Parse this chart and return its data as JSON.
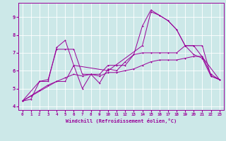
{
  "xlabel": "Windchill (Refroidissement éolien,°C)",
  "bg_color": "#cce8e8",
  "line_color": "#990099",
  "grid_color": "#ffffff",
  "xlim": [
    -0.5,
    23.5
  ],
  "ylim": [
    3.8,
    9.8
  ],
  "xticks": [
    0,
    1,
    2,
    3,
    4,
    5,
    6,
    7,
    8,
    9,
    10,
    11,
    12,
    13,
    14,
    15,
    16,
    17,
    18,
    19,
    20,
    21,
    22,
    23
  ],
  "yticks": [
    4,
    5,
    6,
    7,
    8,
    9
  ],
  "series1_x": [
    0,
    1,
    2,
    3,
    4,
    5,
    6,
    7,
    8,
    9,
    10,
    11,
    12,
    13,
    14,
    15,
    16,
    17,
    18,
    19,
    20,
    21,
    22,
    23
  ],
  "series1_y": [
    4.3,
    4.4,
    5.4,
    5.4,
    7.3,
    7.7,
    6.3,
    5.0,
    5.8,
    5.3,
    6.1,
    6.0,
    6.5,
    6.9,
    8.5,
    9.4,
    9.1,
    8.8,
    8.3,
    7.4,
    6.9,
    6.7,
    5.7,
    5.5
  ],
  "series2_x": [
    0,
    2,
    3,
    4,
    5,
    6,
    7,
    8,
    9,
    10,
    11,
    12,
    13,
    14,
    15,
    16,
    17,
    18,
    19,
    20,
    21,
    22,
    23
  ],
  "series2_y": [
    4.3,
    5.4,
    5.5,
    7.2,
    7.2,
    7.2,
    5.8,
    5.8,
    5.8,
    6.3,
    6.3,
    6.3,
    6.9,
    7.0,
    7.0,
    7.0,
    7.0,
    7.0,
    7.4,
    7.4,
    7.4,
    5.7,
    5.5
  ],
  "series3_x": [
    0,
    4,
    5,
    6,
    10,
    14,
    15,
    16,
    17,
    18,
    19,
    20,
    23
  ],
  "series3_y": [
    4.3,
    5.4,
    5.4,
    6.3,
    6.0,
    7.4,
    9.3,
    9.1,
    8.8,
    8.3,
    7.4,
    7.4,
    5.5
  ],
  "series4_x": [
    0,
    1,
    2,
    3,
    4,
    5,
    6,
    7,
    8,
    9,
    10,
    11,
    12,
    13,
    14,
    15,
    16,
    17,
    18,
    19,
    20,
    21,
    22,
    23
  ],
  "series4_y": [
    4.3,
    4.6,
    4.9,
    5.2,
    5.4,
    5.6,
    5.8,
    5.7,
    5.8,
    5.7,
    5.9,
    5.9,
    6.0,
    6.1,
    6.3,
    6.5,
    6.6,
    6.6,
    6.6,
    6.7,
    6.8,
    6.8,
    5.8,
    5.5
  ]
}
